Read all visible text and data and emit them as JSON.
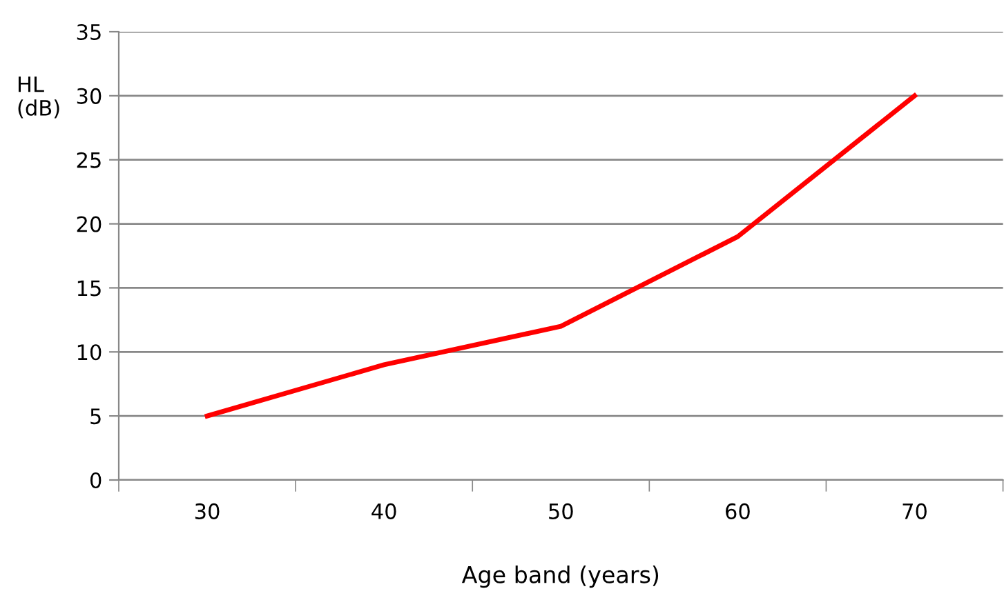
{
  "chart_data": {
    "type": "line",
    "xlabel": "Age band (years)",
    "ylabel": "HL\n(dB)",
    "categories": [
      "30",
      "40",
      "50",
      "60",
      "70"
    ],
    "series": [
      {
        "color": "#ff0000",
        "values": [
          5,
          9,
          12,
          19,
          30
        ]
      }
    ],
    "ylim": [
      0,
      35
    ],
    "yticks": [
      0,
      5,
      10,
      15,
      20,
      25,
      30,
      35
    ],
    "grid": "y",
    "legend": false,
    "marker": "none",
    "line_style": "solid"
  }
}
